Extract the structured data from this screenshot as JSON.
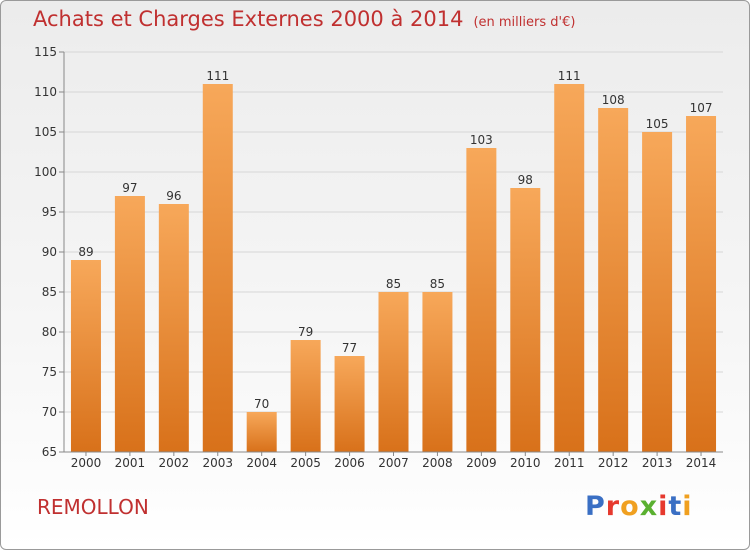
{
  "title": "Achats et Charges Externes 2000 à 2014",
  "unit": "(en milliers d'€)",
  "commune": "REMOLLON",
  "logo": {
    "text": "Proxiti",
    "colors": [
      "#3a6fc4",
      "#e6392e",
      "#f0a020",
      "#5ab030",
      "#e6392e",
      "#3a6fc4",
      "#f0a020"
    ]
  },
  "chart_data": {
    "type": "bar",
    "categories": [
      "2000",
      "2001",
      "2002",
      "2003",
      "2004",
      "2005",
      "2006",
      "2007",
      "2008",
      "2009",
      "2010",
      "2011",
      "2012",
      "2013",
      "2014"
    ],
    "values": [
      89,
      97,
      96,
      111,
      70,
      79,
      77,
      85,
      85,
      103,
      98,
      111,
      108,
      105,
      107
    ],
    "ylim": [
      65,
      115
    ],
    "yticks": [
      65,
      70,
      75,
      80,
      85,
      90,
      95,
      100,
      105,
      110,
      115
    ],
    "grid": true,
    "bar_colors": {
      "light": "#f7a85a",
      "dark": "#d8711a"
    }
  }
}
